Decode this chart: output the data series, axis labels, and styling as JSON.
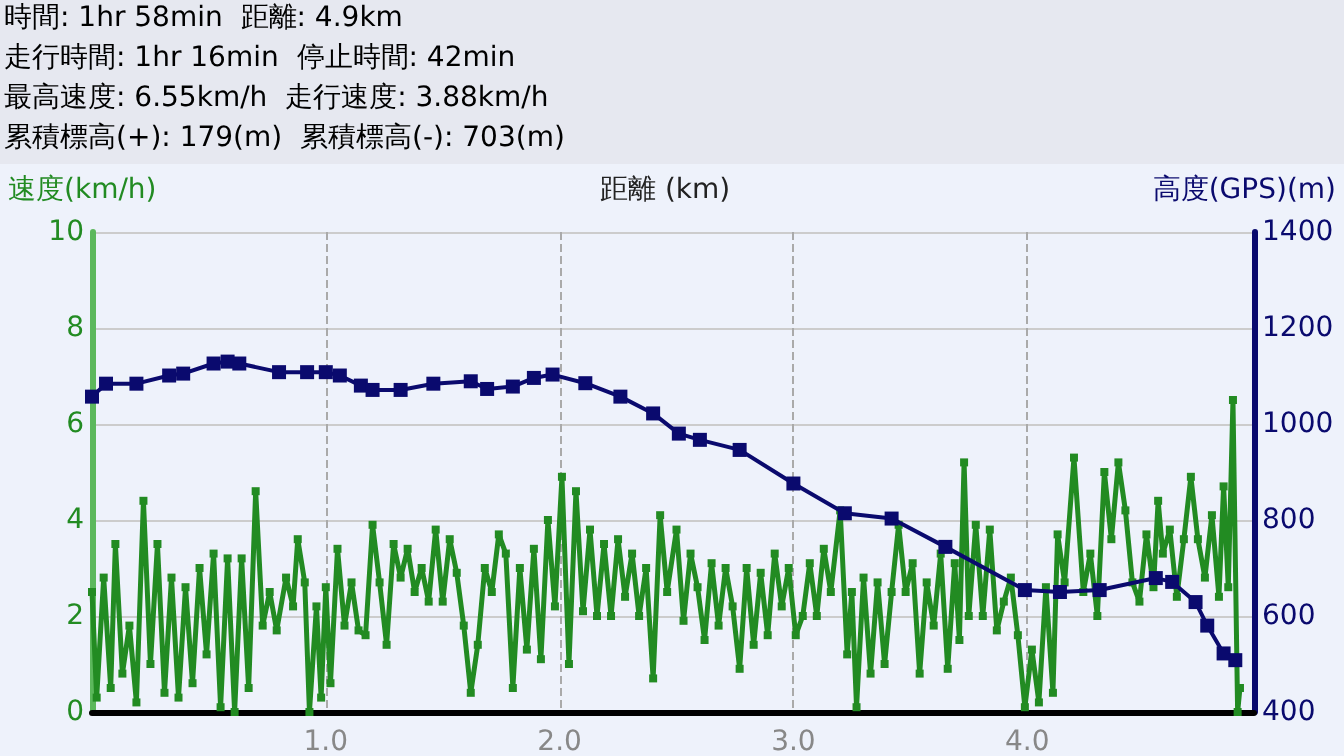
{
  "chart_data": {
    "type": "line",
    "annotations": [
      "時間: 1hr 58min  距離: 4.9km",
      "走行時間: 1hr 16min  停止時間: 42min",
      "最高速度: 6.55km/h  走行速度: 3.88km/h",
      "累積標高(+): 179(m)  累積標高(-): 703(m)"
    ],
    "xlabel": "距離 (km)",
    "ylabel": "速度(km/h)",
    "y2label": "高度(GPS)(m)",
    "xlim": [
      0,
      4.97
    ],
    "xticks": [
      {
        "value": 1,
        "label": "1.0"
      },
      {
        "value": 2,
        "label": "2.0"
      },
      {
        "value": 3,
        "label": "3.0"
      },
      {
        "value": 4,
        "label": "4.0"
      }
    ],
    "ylim": [
      0,
      10
    ],
    "yticks": [
      0,
      2,
      4,
      6,
      8,
      10
    ],
    "y2lim": [
      400,
      1400
    ],
    "y2ticks": [
      400,
      600,
      800,
      1000,
      1200,
      1400
    ],
    "grid": true,
    "marker": "square",
    "line_style": "solid",
    "series": [
      {
        "color": "#228b22",
        "x": [
          0.0,
          0.02,
          0.05,
          0.08,
          0.1,
          0.13,
          0.16,
          0.19,
          0.22,
          0.25,
          0.28,
          0.31,
          0.34,
          0.37,
          0.4,
          0.43,
          0.46,
          0.49,
          0.52,
          0.55,
          0.58,
          0.61,
          0.64,
          0.67,
          0.7,
          0.73,
          0.76,
          0.79,
          0.83,
          0.86,
          0.88,
          0.91,
          0.93,
          0.96,
          0.98,
          1.0,
          1.02,
          1.05,
          1.08,
          1.11,
          1.14,
          1.17,
          1.2,
          1.23,
          1.26,
          1.29,
          1.32,
          1.35,
          1.38,
          1.41,
          1.44,
          1.47,
          1.5,
          1.53,
          1.56,
          1.59,
          1.62,
          1.65,
          1.68,
          1.71,
          1.74,
          1.77,
          1.8,
          1.83,
          1.86,
          1.89,
          1.92,
          1.95,
          1.98,
          2.01,
          2.04,
          2.07,
          2.1,
          2.13,
          2.16,
          2.19,
          2.22,
          2.25,
          2.28,
          2.31,
          2.34,
          2.37,
          2.4,
          2.43,
          2.46,
          2.5,
          2.53,
          2.56,
          2.59,
          2.62,
          2.65,
          2.68,
          2.71,
          2.74,
          2.77,
          2.8,
          2.83,
          2.86,
          2.89,
          2.92,
          2.95,
          2.98,
          3.01,
          3.04,
          3.07,
          3.1,
          3.13,
          3.16,
          3.2,
          3.23,
          3.25,
          3.27,
          3.3,
          3.33,
          3.36,
          3.39,
          3.42,
          3.45,
          3.48,
          3.51,
          3.54,
          3.57,
          3.6,
          3.63,
          3.66,
          3.69,
          3.71,
          3.73,
          3.75,
          3.78,
          3.81,
          3.84,
          3.87,
          3.9,
          3.93,
          3.96,
          3.99,
          4.02,
          4.05,
          4.08,
          4.11,
          4.13,
          4.16,
          4.2,
          4.24,
          4.27,
          4.3,
          4.33,
          4.36,
          4.39,
          4.42,
          4.45,
          4.48,
          4.51,
          4.54,
          4.56,
          4.58,
          4.61,
          4.64,
          4.67,
          4.7,
          4.73,
          4.76,
          4.79,
          4.82,
          4.84,
          4.86,
          4.88,
          4.9,
          4.91
        ],
        "values": [
          2.5,
          0.3,
          2.8,
          0.5,
          3.5,
          0.8,
          1.8,
          0.2,
          4.4,
          1.0,
          3.5,
          0.4,
          2.8,
          0.3,
          2.6,
          0.6,
          3.0,
          1.2,
          3.3,
          0.1,
          3.2,
          0.0,
          3.2,
          0.5,
          4.6,
          1.8,
          2.5,
          1.7,
          2.8,
          2.2,
          3.6,
          2.7,
          0.0,
          2.2,
          0.3,
          2.6,
          0.6,
          3.4,
          1.8,
          2.7,
          1.7,
          1.6,
          3.9,
          2.7,
          1.4,
          3.5,
          2.8,
          3.4,
          2.5,
          3.0,
          2.3,
          3.8,
          2.3,
          3.6,
          2.9,
          1.8,
          0.4,
          1.4,
          3.0,
          2.5,
          3.7,
          3.3,
          0.5,
          3.0,
          1.3,
          3.4,
          1.1,
          4.0,
          2.2,
          4.9,
          1.0,
          4.6,
          2.1,
          3.8,
          2.0,
          3.5,
          2.0,
          3.6,
          2.4,
          3.3,
          2.0,
          3.0,
          0.7,
          4.1,
          2.5,
          3.8,
          1.9,
          3.3,
          2.6,
          1.5,
          3.1,
          1.8,
          3.0,
          2.2,
          0.9,
          3.0,
          1.4,
          2.9,
          1.6,
          3.3,
          2.2,
          3.0,
          1.6,
          2.0,
          3.1,
          2.0,
          3.4,
          2.5,
          4.2,
          1.2,
          2.5,
          0.1,
          2.8,
          0.8,
          2.7,
          1.0,
          2.5,
          3.9,
          2.5,
          3.1,
          0.8,
          2.7,
          1.8,
          3.3,
          0.9,
          3.1,
          1.5,
          5.2,
          2.0,
          3.9,
          2.0,
          3.8,
          1.7,
          2.3,
          2.8,
          1.6,
          0.1,
          1.3,
          0.2,
          2.6,
          0.4,
          3.7,
          2.7,
          5.3,
          2.5,
          3.3,
          2.0,
          5.0,
          3.6,
          5.2,
          4.2,
          2.7,
          2.3,
          3.7,
          2.6,
          4.4,
          3.3,
          3.8,
          2.4,
          3.6,
          4.9,
          3.6,
          2.8,
          4.1,
          2.4,
          4.7,
          2.6,
          6.5,
          0.0,
          0.5
        ]
      },
      {
        "color": "#0a0a6e",
        "axis": "y2",
        "x": [
          0.0,
          0.06,
          0.19,
          0.33,
          0.39,
          0.52,
          0.58,
          0.63,
          0.8,
          0.92,
          1.0,
          1.06,
          1.15,
          1.2,
          1.32,
          1.46,
          1.62,
          1.69,
          1.8,
          1.89,
          1.97,
          2.11,
          2.26,
          2.4,
          2.51,
          2.6,
          2.77,
          3.0,
          3.22,
          3.42,
          3.65,
          3.99,
          4.14,
          4.31,
          4.55,
          4.62,
          4.72,
          4.77,
          4.84,
          4.89
        ],
        "values": [
          1057,
          1084,
          1084,
          1101,
          1105,
          1126,
          1130,
          1126,
          1108,
          1108,
          1108,
          1101,
          1080,
          1071,
          1071,
          1084,
          1089,
          1073,
          1078,
          1096,
          1103,
          1085,
          1057,
          1022,
          980,
          967,
          946,
          876,
          814,
          803,
          744,
          654,
          650,
          654,
          679,
          671,
          629,
          580,
          522,
          508
        ]
      }
    ]
  }
}
